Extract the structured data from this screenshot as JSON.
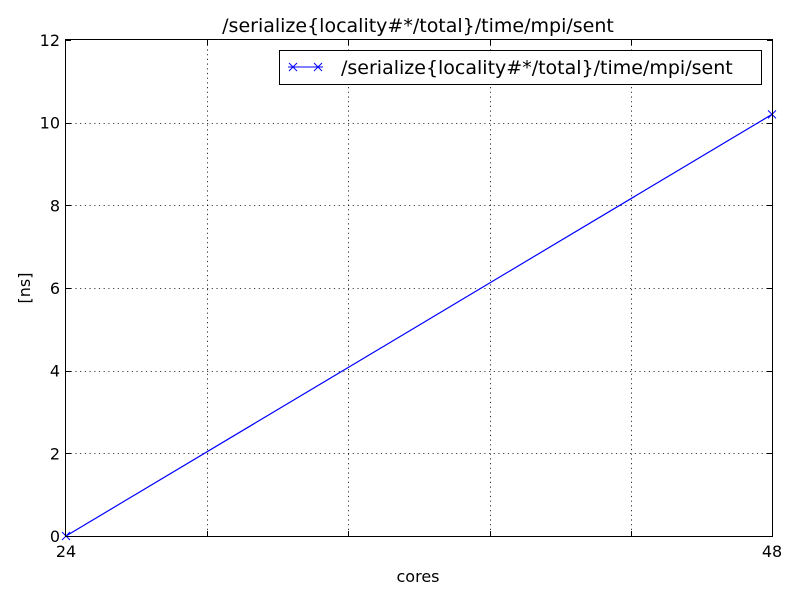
{
  "chart_data": {
    "type": "line",
    "title": "/serialize{locality#*/total}/time/mpi/sent",
    "xlabel": "cores",
    "ylabel": "[ns]",
    "xlim": [
      24,
      48
    ],
    "ylim": [
      0,
      12
    ],
    "x_ticks": [
      24,
      48
    ],
    "x_ticklabels": [
      "24",
      "48"
    ],
    "x_grid": [
      24,
      28.8,
      33.6,
      38.4,
      43.2,
      48
    ],
    "y_ticks": [
      0,
      2,
      4,
      6,
      8,
      10,
      12
    ],
    "y_ticklabels": [
      "0",
      "2",
      "4",
      "6",
      "8",
      "10",
      "12"
    ],
    "grid": true,
    "legend_position": "top-right",
    "series": [
      {
        "name": "/serialize{locality#*/total}/time/mpi/sent",
        "color": "#0000ff",
        "marker": "x",
        "x": [
          24,
          48
        ],
        "y": [
          0,
          10.2
        ]
      }
    ]
  }
}
